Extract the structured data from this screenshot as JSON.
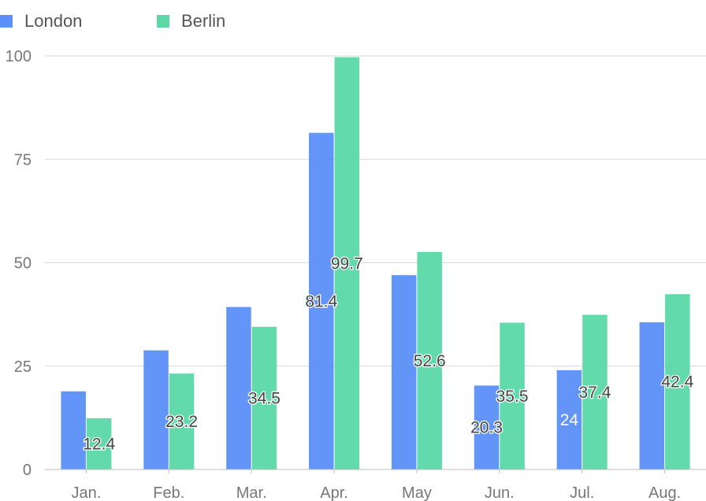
{
  "chart_data": {
    "type": "bar",
    "categories": [
      "Jan.",
      "Feb.",
      "Mar.",
      "Apr.",
      "May",
      "Jun.",
      "Jul.",
      "Aug."
    ],
    "series": [
      {
        "name": "London",
        "color": "#5B8FF9",
        "values": [
          18.9,
          28.8,
          39.3,
          81.4,
          47,
          20.3,
          24,
          35.6
        ],
        "value_labels": [
          null,
          null,
          null,
          "81.4",
          null,
          "20.3",
          "24",
          null
        ]
      },
      {
        "name": "Berlin",
        "color": "#5AD8A6",
        "values": [
          12.4,
          23.2,
          34.5,
          99.7,
          52.6,
          35.5,
          37.4,
          42.4
        ],
        "value_labels": [
          "12.4",
          "23.2",
          "34.5",
          "99.7",
          "52.6",
          "35.5",
          "37.4",
          "42.4"
        ]
      }
    ],
    "yticks": [
      "0",
      "25",
      "50",
      "75",
      "100"
    ],
    "ylim": [
      0,
      100
    ],
    "title": "",
    "xlabel": "",
    "ylabel": "",
    "grid": true,
    "legend": "top-left"
  }
}
